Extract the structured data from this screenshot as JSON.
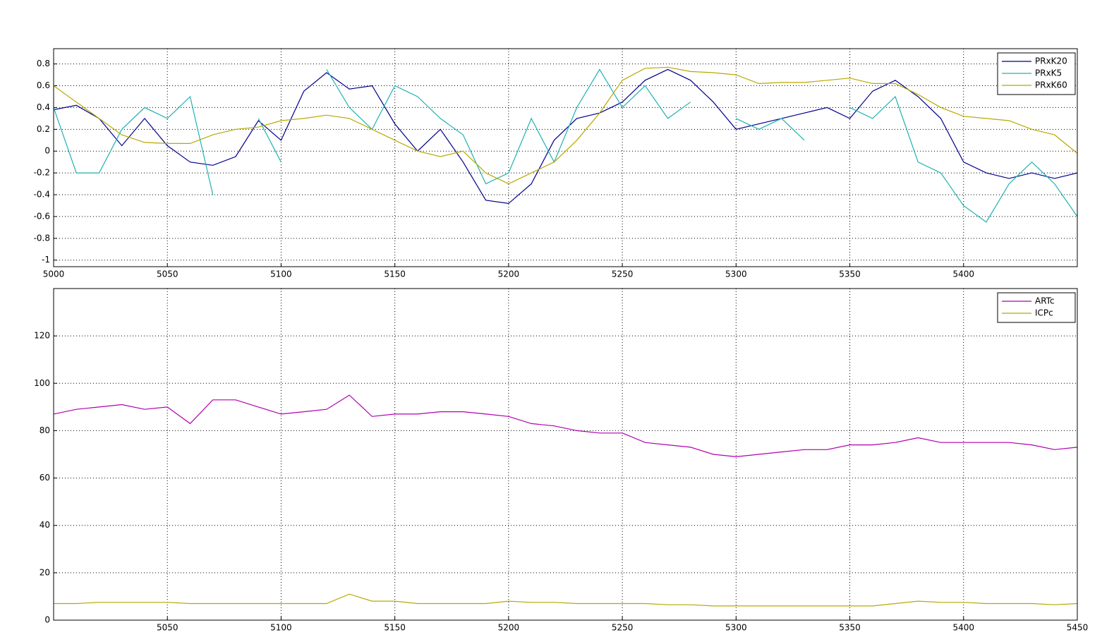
{
  "chart_data": [
    {
      "type": "line",
      "grid": true,
      "legend": "upper right",
      "x": [
        5000,
        5010,
        5020,
        5030,
        5040,
        5050,
        5060,
        5070,
        5080,
        5090,
        5100,
        5110,
        5120,
        5130,
        5140,
        5150,
        5160,
        5170,
        5180,
        5190,
        5200,
        5210,
        5220,
        5230,
        5240,
        5250,
        5260,
        5270,
        5280,
        5290,
        5300,
        5310,
        5320,
        5330,
        5340,
        5350,
        5360,
        5370,
        5380,
        5390,
        5400,
        5410,
        5420,
        5430,
        5440,
        5450
      ],
      "xlim": [
        5000,
        5450
      ],
      "xticks": [
        5000,
        5050,
        5100,
        5150,
        5200,
        5250,
        5300,
        5350,
        5400
      ],
      "ylim": [
        -1.06,
        0.94
      ],
      "yticks": [
        -1,
        -0.8,
        -0.6,
        -0.4,
        -0.2,
        0,
        0.2,
        0.4,
        0.6,
        0.8
      ],
      "series": [
        {
          "name": "PRxK20",
          "color": "#00008b",
          "values": [
            0.38,
            0.42,
            0.3,
            0.05,
            0.3,
            0.05,
            -0.1,
            -0.13,
            -0.05,
            0.28,
            0.1,
            0.55,
            0.72,
            0.57,
            0.6,
            0.25,
            0.0,
            0.2,
            -0.1,
            -0.45,
            -0.48,
            -0.3,
            0.1,
            0.3,
            0.35,
            0.45,
            0.65,
            0.75,
            0.65,
            0.45,
            0.2,
            0.25,
            0.3,
            0.35,
            0.4,
            0.3,
            0.55,
            0.65,
            0.5,
            0.3,
            -0.1,
            -0.2,
            -0.25,
            -0.2,
            -0.25,
            -0.2
          ]
        },
        {
          "name": "PRxK5",
          "color": "#20b2b2",
          "values": [
            0.4,
            -0.2,
            -0.2,
            0.2,
            0.4,
            0.3,
            0.5,
            -0.4,
            null,
            0.3,
            -0.1,
            null,
            0.75,
            0.4,
            0.2,
            0.6,
            0.5,
            0.3,
            0.15,
            -0.3,
            -0.2,
            0.3,
            -0.1,
            0.4,
            0.75,
            0.4,
            0.6,
            0.3,
            0.45,
            null,
            0.3,
            0.2,
            0.3,
            0.1,
            null,
            0.4,
            0.3,
            0.5,
            -0.1,
            -0.2,
            -0.5,
            -0.65,
            -0.3,
            -0.1,
            -0.3,
            -0.6
          ]
        },
        {
          "name": "PRxK60",
          "color": "#b8a800",
          "values": [
            0.6,
            0.45,
            0.3,
            0.15,
            0.08,
            0.07,
            0.07,
            0.15,
            0.2,
            0.22,
            0.28,
            0.3,
            0.33,
            0.3,
            0.2,
            0.1,
            0.0,
            -0.05,
            0.0,
            -0.2,
            -0.3,
            -0.2,
            -0.1,
            0.1,
            0.35,
            0.65,
            0.76,
            0.77,
            0.73,
            0.72,
            0.7,
            0.62,
            0.63,
            0.63,
            0.65,
            0.67,
            0.62,
            0.62,
            0.52,
            0.4,
            0.32,
            0.3,
            0.28,
            0.2,
            0.15,
            -0.02
          ]
        }
      ]
    },
    {
      "type": "line",
      "grid": true,
      "legend": "upper right",
      "x": [
        5000,
        5010,
        5020,
        5030,
        5040,
        5050,
        5060,
        5070,
        5080,
        5090,
        5100,
        5110,
        5120,
        5130,
        5140,
        5150,
        5160,
        5170,
        5180,
        5190,
        5200,
        5210,
        5220,
        5230,
        5240,
        5250,
        5260,
        5270,
        5280,
        5290,
        5300,
        5310,
        5320,
        5330,
        5340,
        5350,
        5360,
        5370,
        5380,
        5390,
        5400,
        5410,
        5420,
        5430,
        5440,
        5450
      ],
      "xlim": [
        5000,
        5450
      ],
      "xticks": [
        5050,
        5100,
        5150,
        5200,
        5250,
        5300,
        5350,
        5400,
        5450
      ],
      "ylim": [
        0,
        140
      ],
      "yticks": [
        0,
        20,
        40,
        60,
        80,
        100,
        120
      ],
      "series": [
        {
          "name": "ARTc",
          "color": "#b000b0",
          "values": [
            87,
            89,
            90,
            91,
            89,
            90,
            83,
            93,
            93,
            90,
            87,
            88,
            89,
            95,
            86,
            87,
            87,
            88,
            88,
            87,
            86,
            83,
            82,
            80,
            79,
            79,
            75,
            74,
            73,
            70,
            69,
            70,
            71,
            72,
            72,
            74,
            74,
            75,
            77,
            75,
            75,
            75,
            75,
            74,
            72,
            73
          ]
        },
        {
          "name": "ICPc",
          "color": "#b8a800",
          "values": [
            7,
            7,
            7.5,
            7.5,
            7.5,
            7.5,
            7,
            7,
            7,
            7,
            7,
            7,
            7,
            11,
            8,
            8,
            7,
            7,
            7,
            7,
            8,
            7.5,
            7.5,
            7,
            7,
            7,
            7,
            6.5,
            6.5,
            6,
            6,
            6,
            6,
            6,
            6,
            6,
            6,
            7,
            8,
            7.5,
            7.5,
            7,
            7,
            7,
            6.5,
            7
          ]
        }
      ]
    }
  ]
}
